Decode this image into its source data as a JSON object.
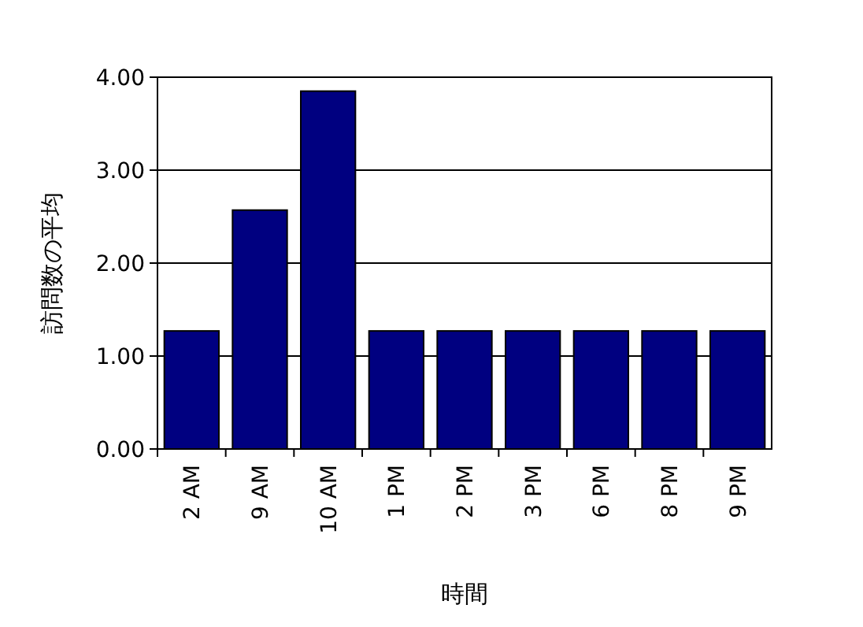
{
  "chart_data": {
    "type": "bar",
    "xlabel": "時間",
    "ylabel": "訪問数の平均",
    "categories": [
      "2 AM",
      "9 AM",
      "10 AM",
      "1 PM",
      "2 PM",
      "3 PM",
      "6 PM",
      "8 PM",
      "9 PM"
    ],
    "values": [
      1.27,
      2.57,
      3.85,
      1.27,
      1.27,
      1.27,
      1.27,
      1.27,
      1.27
    ],
    "color": "#000080",
    "ylim": [
      0,
      4
    ],
    "yticks": [
      {
        "value": 0,
        "label": "0.00"
      },
      {
        "value": 1,
        "label": "1.00"
      },
      {
        "value": 2,
        "label": "2.00"
      },
      {
        "value": 3,
        "label": "3.00"
      },
      {
        "value": 4,
        "label": "4.00"
      }
    ],
    "grid": "y"
  }
}
